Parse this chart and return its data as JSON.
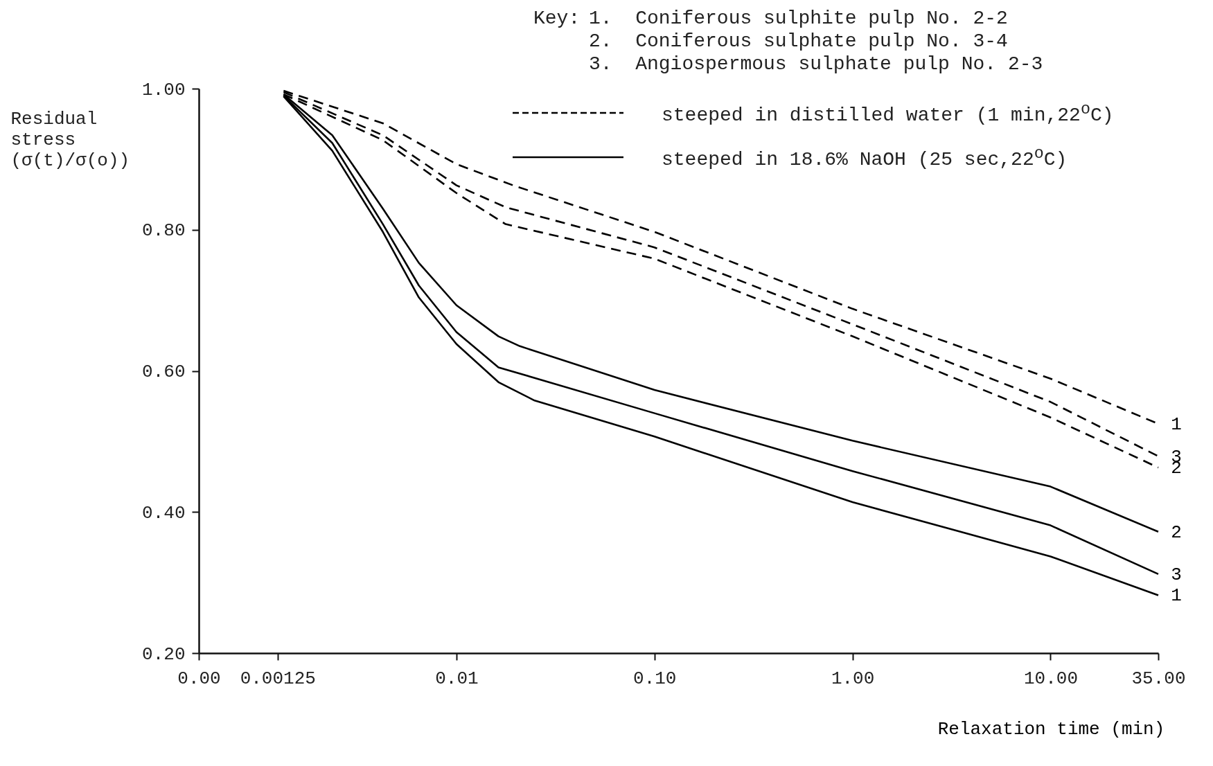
{
  "chart_data": {
    "type": "line",
    "xlabel": "Relaxation time (min)",
    "ylabel": "Residual stress (σ(t)/σ(o))",
    "log": "x",
    "grid": false,
    "xlim": [
      0.0005,
      35
    ],
    "xticks": [
      {
        "value": 0.0005,
        "label": "0.00"
      },
      0.00125,
      0.01,
      {
        "value": 0.1,
        "label": "0.10"
      },
      {
        "value": 1,
        "label": "1.00"
      },
      {
        "value": 10,
        "label": "10.00"
      },
      {
        "value": 35,
        "label": "35.00"
      }
    ],
    "ylim": [
      0.2,
      1
    ],
    "yticks": [
      {
        "value": 0.2,
        "label": "0.20"
      },
      {
        "value": 0.4,
        "label": "0.40"
      },
      {
        "value": 0.6,
        "label": "0.60"
      },
      {
        "value": 0.8,
        "label": "0.80"
      },
      {
        "value": 1,
        "label": "1.00"
      }
    ],
    "annotations": [
      "Key:",
      "1.  Coniferous sulphite pulp No. 2-2",
      "2.  Coniferous sulphate pulp No. 3-4",
      "3.  Angiospermous sulphate pulp No. 2-3",
      "steeped in distilled water (1 min,22$^{o}$C)",
      "steeped in 18.6% NaOH (25 sec,22$^{o}$C)"
    ],
    "series": [
      {
        "name": "1",
        "color": "#000000",
        "line_style": "dashed",
        "x": [
          0.00134,
          0.00425,
          0.01,
          0.0193,
          0.1,
          1,
          10,
          35
        ],
        "values": [
          0.997,
          0.951,
          0.893,
          0.863,
          0.797,
          0.688,
          0.589,
          0.525
        ]
      },
      {
        "name": "3",
        "color": "#000000",
        "line_style": "dashed",
        "x": [
          0.00134,
          0.00425,
          0.01,
          0.0177,
          0.1,
          1,
          10,
          35
        ],
        "values": [
          0.995,
          0.934,
          0.863,
          0.832,
          0.775,
          0.666,
          0.556,
          0.479
        ]
      },
      {
        "name": "2",
        "color": "#000000",
        "line_style": "dashed",
        "x": [
          0.00134,
          0.00425,
          0.01,
          0.0177,
          0.1,
          1,
          10,
          35
        ],
        "values": [
          0.992,
          0.927,
          0.852,
          0.808,
          0.759,
          0.649,
          0.534,
          0.463
        ]
      },
      {
        "name": "2",
        "color": "#000000",
        "line_style": "solid",
        "x": [
          0.00134,
          0.00236,
          0.00425,
          0.00646,
          0.01,
          0.0163,
          0.0209,
          0.1,
          1,
          10,
          35
        ],
        "values": [
          0.992,
          0.934,
          0.83,
          0.753,
          0.693,
          0.649,
          0.635,
          0.573,
          0.501,
          0.436,
          0.372
        ]
      },
      {
        "name": "3",
        "color": "#000000",
        "line_style": "solid",
        "x": [
          0.00134,
          0.00236,
          0.00425,
          0.00646,
          0.01,
          0.0163,
          0.1,
          1,
          10,
          35
        ],
        "values": [
          0.99,
          0.923,
          0.808,
          0.721,
          0.655,
          0.605,
          0.54,
          0.458,
          0.381,
          0.312
        ]
      },
      {
        "name": "1",
        "color": "#000000",
        "line_style": "solid",
        "x": [
          0.00134,
          0.00236,
          0.00425,
          0.00646,
          0.01,
          0.0163,
          0.0248,
          0.1,
          1,
          10,
          35
        ],
        "values": [
          0.989,
          0.912,
          0.797,
          0.704,
          0.638,
          0.584,
          0.558,
          0.507,
          0.414,
          0.337,
          0.282
        ]
      }
    ]
  }
}
